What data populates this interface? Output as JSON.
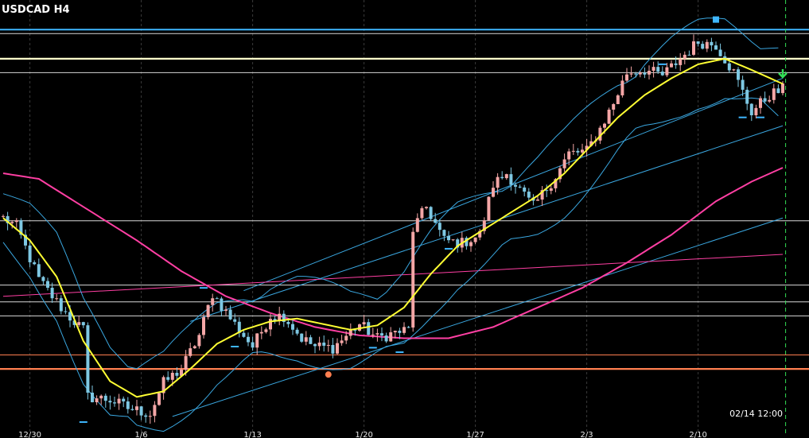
{
  "chart_data": {
    "type": "candlestick",
    "title": "USDCAD H4",
    "time_readout": "02/14 12:00",
    "x_tick_labels": [
      "12/30",
      "1/6",
      "1/13",
      "1/20",
      "1/27",
      "2/3",
      "2/10"
    ],
    "x_tick_index": [
      6,
      31,
      56,
      81,
      106,
      131,
      156
    ],
    "y_range": [
      1.4075,
      1.485
    ],
    "grid": true,
    "colors": {
      "background": "#000000",
      "grid": "#3a3a3a",
      "bull": "#f4a6a6",
      "bear": "#7ec8e3",
      "ma_short": "#ffff33",
      "ma_long": "#ff3fa3",
      "bollinger": "#3aa7e0",
      "channel": "#3aa7e0",
      "hline_top": "#3fb7ff",
      "hline_yellow": "#ffffcc",
      "hline_white": "#d8d8d8",
      "hline_orange": "#ff7f50",
      "fractal_marker": "#3fb7ff",
      "signal_dot": "#ff7f50",
      "signal_arrow": "#33dd55",
      "current_time_line": "#33dd55"
    },
    "horizontal_levels": [
      {
        "price": 1.4797,
        "kind": "top"
      },
      {
        "price": 1.479,
        "kind": "white"
      },
      {
        "price": 1.4745,
        "kind": "yellow"
      },
      {
        "price": 1.472,
        "kind": "white"
      },
      {
        "price": 1.4455,
        "kind": "white"
      },
      {
        "price": 1.434,
        "kind": "white"
      },
      {
        "price": 1.431,
        "kind": "white"
      },
      {
        "price": 1.4285,
        "kind": "white"
      },
      {
        "price": 1.4215,
        "kind": "orange"
      },
      {
        "price": 1.419,
        "kind": "orange_thick"
      }
    ],
    "candles": {
      "count": 176,
      "anchors": [
        [
          0,
          1.446
        ],
        [
          3,
          1.4445
        ],
        [
          8,
          1.435
        ],
        [
          14,
          1.429
        ],
        [
          18,
          1.426
        ],
        [
          19,
          1.414
        ],
        [
          24,
          1.4135
        ],
        [
          28,
          1.412
        ],
        [
          33,
          1.411
        ],
        [
          36,
          1.4165
        ],
        [
          40,
          1.419
        ],
        [
          44,
          1.425
        ],
        [
          47,
          1.4325
        ],
        [
          52,
          1.427
        ],
        [
          56,
          1.423
        ],
        [
          60,
          1.4285
        ],
        [
          63,
          1.4285
        ],
        [
          67,
          1.4245
        ],
        [
          70,
          1.423
        ],
        [
          74,
          1.4228
        ],
        [
          80,
          1.427
        ],
        [
          84,
          1.4245
        ],
        [
          88,
          1.4255
        ],
        [
          91,
          1.426
        ],
        [
          92,
          1.444
        ],
        [
          95,
          1.448
        ],
        [
          99,
          1.442
        ],
        [
          103,
          1.4415
        ],
        [
          107,
          1.443
        ],
        [
          110,
          1.452
        ],
        [
          113,
          1.454
        ],
        [
          116,
          1.451
        ],
        [
          119,
          1.448
        ],
        [
          124,
          1.4535
        ],
        [
          127,
          1.4575
        ],
        [
          131,
          1.458
        ],
        [
          134,
          1.462
        ],
        [
          137,
          1.4665
        ],
        [
          140,
          1.472
        ],
        [
          144,
          1.4725
        ],
        [
          148,
          1.4715
        ],
        [
          152,
          1.4745
        ],
        [
          156,
          1.4775
        ],
        [
          160,
          1.477
        ],
        [
          164,
          1.472
        ],
        [
          168,
          1.465
        ],
        [
          172,
          1.468
        ],
        [
          175,
          1.469
        ]
      ]
    },
    "ma_short": [
      [
        0,
        1.446
      ],
      [
        6,
        1.442
      ],
      [
        12,
        1.4355
      ],
      [
        18,
        1.424
      ],
      [
        24,
        1.4168
      ],
      [
        30,
        1.414
      ],
      [
        36,
        1.415
      ],
      [
        42,
        1.419
      ],
      [
        48,
        1.4235
      ],
      [
        54,
        1.426
      ],
      [
        60,
        1.4275
      ],
      [
        66,
        1.428
      ],
      [
        72,
        1.427
      ],
      [
        78,
        1.426
      ],
      [
        84,
        1.4268
      ],
      [
        90,
        1.43
      ],
      [
        96,
        1.436
      ],
      [
        102,
        1.441
      ],
      [
        108,
        1.444
      ],
      [
        114,
        1.447
      ],
      [
        120,
        1.45
      ],
      [
        126,
        1.454
      ],
      [
        132,
        1.459
      ],
      [
        138,
        1.464
      ],
      [
        144,
        1.468
      ],
      [
        150,
        1.471
      ],
      [
        156,
        1.4735
      ],
      [
        162,
        1.4745
      ],
      [
        168,
        1.4725
      ],
      [
        175,
        1.47
      ]
    ],
    "ma_long": [
      [
        0,
        1.454
      ],
      [
        8,
        1.453
      ],
      [
        20,
        1.447
      ],
      [
        30,
        1.442
      ],
      [
        40,
        1.4365
      ],
      [
        50,
        1.432
      ],
      [
        60,
        1.429
      ],
      [
        70,
        1.4265
      ],
      [
        80,
        1.425
      ],
      [
        90,
        1.4245
      ],
      [
        100,
        1.4245
      ],
      [
        110,
        1.4265
      ],
      [
        120,
        1.43
      ],
      [
        130,
        1.4335
      ],
      [
        140,
        1.438
      ],
      [
        150,
        1.443
      ],
      [
        160,
        1.449
      ],
      [
        168,
        1.4525
      ],
      [
        175,
        1.455
      ]
    ],
    "channel_lines": [
      {
        "from": [
          38,
          1.4105
        ],
        "to": [
          175,
          1.446
        ]
      },
      {
        "from": [
          42,
          1.4275
        ],
        "to": [
          175,
          1.4625
        ]
      },
      {
        "from": [
          54,
          1.433
        ],
        "to": [
          175,
          1.471
        ]
      },
      {
        "from": [
          0,
          1.432
        ],
        "to": [
          175,
          1.4395
        ]
      }
    ],
    "bollinger_width": 0.0062,
    "fractal_markers": [
      [
        18,
        1.4095
      ],
      [
        45,
        1.4335
      ],
      [
        52,
        1.423
      ],
      [
        83,
        1.4228
      ],
      [
        89,
        1.422
      ],
      [
        100,
        1.4405
      ],
      [
        148,
        1.4735
      ],
      [
        166,
        1.464
      ],
      [
        170,
        1.464
      ]
    ],
    "top_marker": {
      "index": 160,
      "price": 1.4815
    },
    "signal_dot": {
      "index": 73,
      "price": 1.418
    },
    "signal_arrow": {
      "index": 175,
      "price": 1.4712
    },
    "current_time_index": 176
  }
}
